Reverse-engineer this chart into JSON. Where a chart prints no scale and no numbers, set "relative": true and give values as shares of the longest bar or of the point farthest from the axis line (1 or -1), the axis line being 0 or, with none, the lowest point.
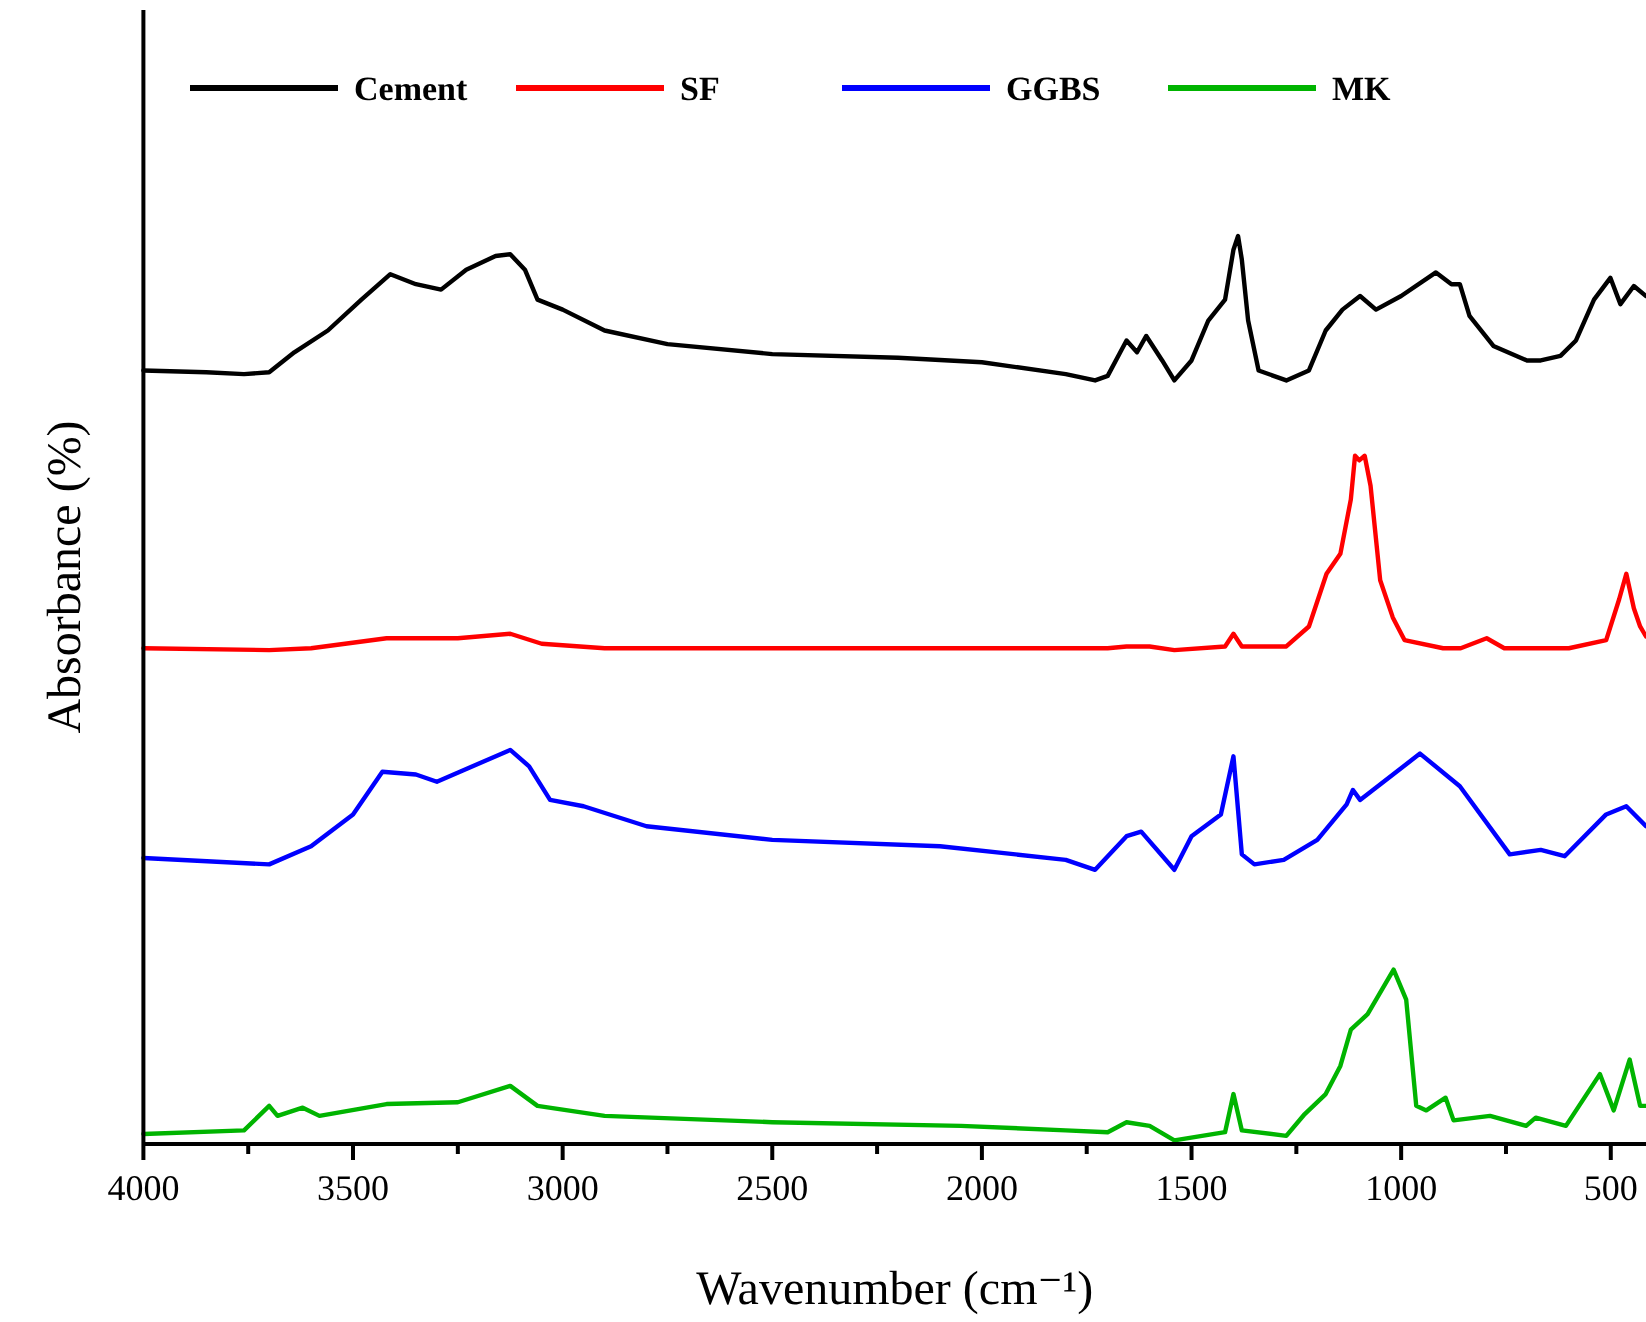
{
  "chart_data": {
    "type": "line",
    "relative": true,
    "xlabel": "Wavenumber (cm⁻¹)",
    "ylabel": "Absorbance (%)",
    "xlim": [
      4000,
      416
    ],
    "xticks": [
      4000,
      {
        "value": 3750,
        "label": null
      },
      3500,
      {
        "value": 3250,
        "label": null
      },
      3000,
      {
        "value": 2750,
        "label": null
      },
      2500,
      {
        "value": 2250,
        "label": null
      },
      2000,
      {
        "value": 1750,
        "label": null
      },
      1500,
      {
        "value": 1250,
        "label": null
      },
      1000,
      {
        "value": 750,
        "label": null
      },
      500
    ],
    "tick_labels": "x",
    "legend": "top",
    "grid": false,
    "marker": "none",
    "line_style": "solid",
    "series": [
      {
        "name": "Cement",
        "color": "#000000",
        "x": [
          4000,
          3850,
          3760,
          3700,
          3640,
          3560,
          3480,
          3411,
          3350,
          3290,
          3230,
          3160,
          3125,
          3090,
          3060,
          3000,
          2900,
          2750,
          2500,
          2200,
          2000,
          1800,
          1730,
          1700,
          1670,
          1655,
          1630,
          1608,
          1570,
          1541,
          1500,
          1460,
          1420,
          1400,
          1389,
          1380,
          1365,
          1340,
          1274,
          1220,
          1180,
          1140,
          1098,
          1060,
          1000,
          917,
          880,
          860,
          837,
          780,
          700,
          667,
          620,
          583,
          540,
          501,
          477,
          445,
          416
        ],
        "values": [
          0.852,
          0.85,
          0.848,
          0.85,
          0.872,
          0.896,
          0.93,
          0.958,
          0.947,
          0.941,
          0.963,
          0.978,
          0.98,
          0.963,
          0.93,
          0.919,
          0.896,
          0.881,
          0.87,
          0.866,
          0.861,
          0.848,
          0.841,
          0.846,
          0.872,
          0.885,
          0.872,
          0.89,
          0.863,
          0.841,
          0.863,
          0.907,
          0.93,
          0.985,
          1,
          0.974,
          0.907,
          0.852,
          0.841,
          0.852,
          0.896,
          0.919,
          0.934,
          0.919,
          0.934,
          0.96,
          0.947,
          0.947,
          0.912,
          0.879,
          0.863,
          0.863,
          0.868,
          0.885,
          0.93,
          0.954,
          0.925,
          0.945,
          0.934
        ]
      },
      {
        "name": "SF",
        "color": "#ff0000",
        "x": [
          4000,
          3700,
          3600,
          3420,
          3250,
          3125,
          3050,
          2900,
          2000,
          1700,
          1655,
          1600,
          1541,
          1420,
          1400,
          1380,
          1274,
          1220,
          1178,
          1145,
          1120,
          1110,
          1100,
          1087,
          1073,
          1050,
          1020,
          992,
          900,
          858,
          796,
          754,
          600,
          511,
          480,
          463,
          445,
          430,
          416
        ],
        "values": [
          0.546,
          0.544,
          0.546,
          0.557,
          0.557,
          0.562,
          0.551,
          0.546,
          0.546,
          0.546,
          0.548,
          0.548,
          0.544,
          0.548,
          0.562,
          0.548,
          0.548,
          0.57,
          0.628,
          0.65,
          0.71,
          0.758,
          0.753,
          0.758,
          0.725,
          0.621,
          0.58,
          0.555,
          0.546,
          0.546,
          0.557,
          0.546,
          0.546,
          0.555,
          0.6,
          0.628,
          0.59,
          0.57,
          0.559
        ]
      },
      {
        "name": "GGBS",
        "color": "#0000ff",
        "x": [
          4000,
          3700,
          3600,
          3500,
          3430,
          3350,
          3300,
          3125,
          3080,
          3030,
          2950,
          2800,
          2500,
          2100,
          1800,
          1730,
          1655,
          1620,
          1541,
          1500,
          1430,
          1400,
          1380,
          1350,
          1280,
          1200,
          1130,
          1115,
          1098,
          955,
          860,
          741,
          667,
          610,
          511,
          463,
          416
        ],
        "values": [
          0.315,
          0.308,
          0.328,
          0.363,
          0.41,
          0.407,
          0.399,
          0.434,
          0.416,
          0.379,
          0.372,
          0.35,
          0.335,
          0.328,
          0.313,
          0.302,
          0.339,
          0.344,
          0.302,
          0.339,
          0.363,
          0.427,
          0.319,
          0.308,
          0.313,
          0.335,
          0.374,
          0.39,
          0.379,
          0.43,
          0.394,
          0.319,
          0.324,
          0.317,
          0.363,
          0.372,
          0.35
        ]
      },
      {
        "name": "MK",
        "color": "#00b400",
        "x": [
          4000,
          3760,
          3700,
          3680,
          3620,
          3580,
          3420,
          3250,
          3125,
          3060,
          2900,
          2500,
          2050,
          1800,
          1700,
          1655,
          1600,
          1541,
          1420,
          1400,
          1380,
          1274,
          1230,
          1180,
          1145,
          1120,
          1080,
          1018,
          988,
          964,
          940,
          894,
          875,
          788,
          702,
          679,
          607,
          526,
          493,
          455,
          430,
          416
        ],
        "values": [
          0.011,
          0.015,
          0.042,
          0.031,
          0.04,
          0.031,
          0.044,
          0.046,
          0.064,
          0.042,
          0.031,
          0.024,
          0.02,
          0.015,
          0.013,
          0.024,
          0.02,
          0.004,
          0.013,
          0.055,
          0.015,
          0.009,
          0.033,
          0.055,
          0.086,
          0.126,
          0.143,
          0.192,
          0.159,
          0.042,
          0.037,
          0.051,
          0.026,
          0.031,
          0.02,
          0.029,
          0.02,
          0.077,
          0.037,
          0.093,
          0.042,
          0.042
        ]
      }
    ]
  }
}
